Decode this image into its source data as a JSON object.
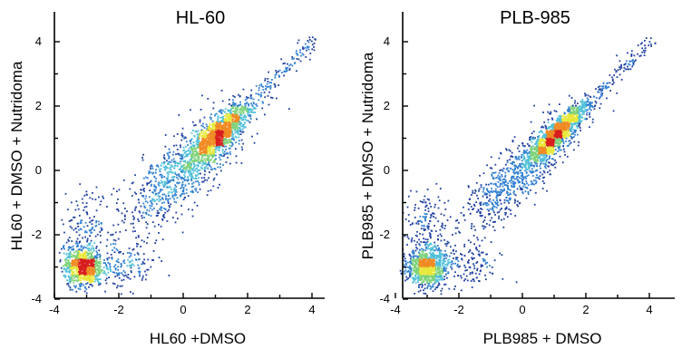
{
  "chart_data": [
    {
      "type": "scatter",
      "title": "HL-60",
      "xlabel": "HL60 +DMSO",
      "ylabel": "HL60 + DMSO + Nutridoma",
      "xlim": [
        -4,
        4.5
      ],
      "ylim": [
        -4,
        5
      ],
      "x_ticks": [
        -4,
        -2,
        0,
        2,
        4
      ],
      "y_ticks": [
        -4,
        -2,
        0,
        2,
        4
      ],
      "x_tick_labels": [
        "-4",
        "-2",
        "0",
        "2",
        "4"
      ],
      "y_tick_labels": [
        "-4",
        "-2",
        "0",
        "2",
        "4"
      ],
      "grid": false,
      "colormap": "density (blue-cyan-green-yellow-red)",
      "colors": [
        "#1f3fa0",
        "#2f7fd0",
        "#4fc0d8",
        "#7ed27a",
        "#e8e83a",
        "#f08a24",
        "#d81e1e"
      ],
      "density_clusters": [
        {
          "cx": 1.1,
          "cy": 1.1,
          "density": "high",
          "trend": "diagonal y=x",
          "sd_along": 0.65,
          "sd_across": 0.22
        },
        {
          "cx": 0.0,
          "cy": 0.0,
          "density": "medium",
          "trend": "diagonal y=x",
          "sd_along": 1.3,
          "sd_across": 0.45
        },
        {
          "cx": -3.1,
          "cy": -3.0,
          "density": "medium",
          "sd_x": 0.3,
          "sd_y": 0.3
        },
        {
          "cx": -3.0,
          "cy": -1.7,
          "density": "low",
          "sd_x": 0.4,
          "sd_y": 0.5
        },
        {
          "cx": -1.8,
          "cy": -3.0,
          "density": "low",
          "sd_x": 0.5,
          "sd_y": 0.35
        }
      ]
    },
    {
      "type": "scatter",
      "title": "PLB-985",
      "xlabel": "PLB985 + DMSO",
      "ylabel": "PLB985 + DMSO + Nutridoma",
      "xlim": [
        -4,
        4.5
      ],
      "ylim": [
        -4,
        5
      ],
      "x_ticks": [
        -4,
        -2,
        0,
        2,
        4
      ],
      "y_ticks": [
        -4,
        -2,
        0,
        2,
        4
      ],
      "x_tick_labels": [
        "-4",
        "-2",
        "0",
        "2",
        "4"
      ],
      "y_tick_labels": [
        "-4",
        "-2",
        "0",
        "2",
        "4"
      ],
      "grid": false,
      "colormap": "density (blue-cyan-green-yellow-red)",
      "colors": [
        "#1f3fa0",
        "#2f7fd0",
        "#4fc0d8",
        "#7ed27a",
        "#e8e83a",
        "#f08a24",
        "#d81e1e"
      ],
      "density_clusters": [
        {
          "cx": 1.1,
          "cy": 1.15,
          "density": "high",
          "trend": "diagonal y=x",
          "sd_along": 0.6,
          "sd_across": 0.15
        },
        {
          "cx": 0.0,
          "cy": 0.0,
          "density": "medium",
          "trend": "diagonal y=x",
          "sd_along": 1.4,
          "sd_across": 0.35
        },
        {
          "cx": -3.0,
          "cy": -3.0,
          "density": "medium",
          "sd_x": 0.3,
          "sd_y": 0.3
        },
        {
          "cx": -3.0,
          "cy": -1.6,
          "density": "low",
          "sd_x": 0.35,
          "sd_y": 0.5
        },
        {
          "cx": -1.7,
          "cy": -3.0,
          "density": "low",
          "sd_x": 0.5,
          "sd_y": 0.35
        }
      ]
    }
  ]
}
